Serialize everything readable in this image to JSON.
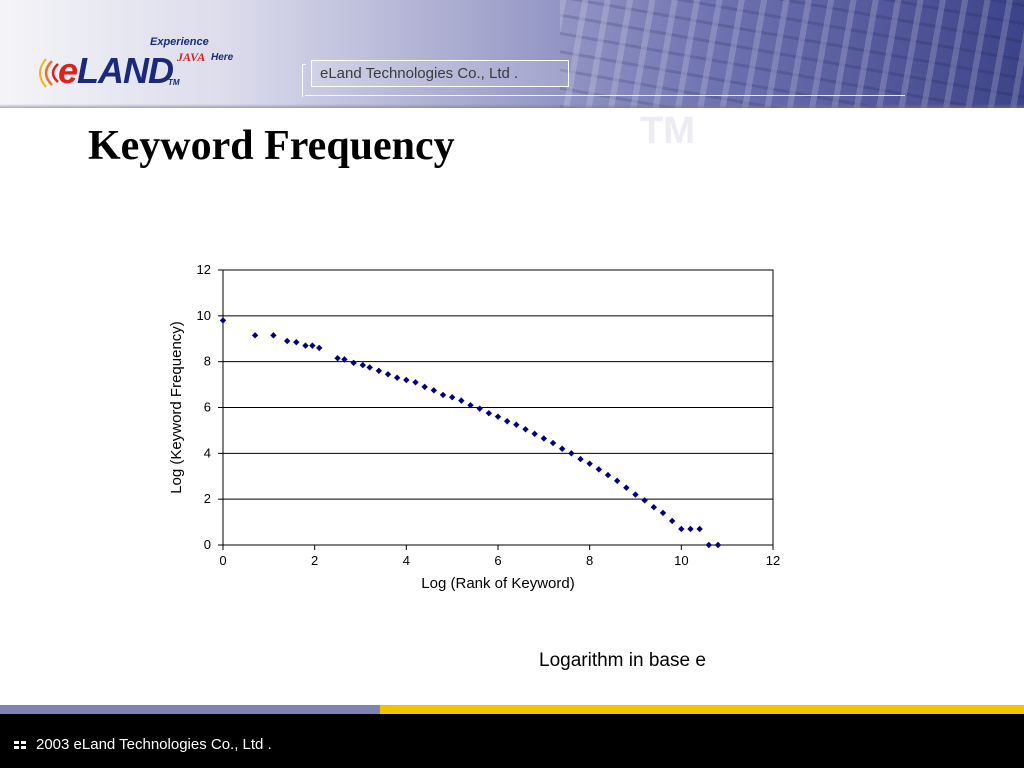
{
  "header": {
    "logo": {
      "word_e": "e",
      "word_rest": "LAND",
      "tm": "TM",
      "tagline_experience": "Experience",
      "tagline_java": "JAVA",
      "tagline_here": "Here"
    },
    "company_box": "eLand Technologies Co., Ltd .",
    "watermark": "TM"
  },
  "slide": {
    "title": "Keyword Frequency",
    "note": "Logarithm in base e"
  },
  "footer": {
    "text": "2003 eLand Technologies Co., Ltd ."
  },
  "colors": {
    "marker": "#00007f",
    "grid": "#000000",
    "footer_bg": "#000000",
    "footer_strip_blue": "#7f82b4",
    "footer_strip_yellow": "#f2c400"
  },
  "chart_data": {
    "type": "scatter",
    "title": "",
    "xlabel": "Log (Rank of Keyword)",
    "ylabel": "Log (Keyword Frequency)",
    "xlim": [
      0,
      12
    ],
    "ylim": [
      0,
      12
    ],
    "xticks": [
      0,
      2,
      4,
      6,
      8,
      10,
      12
    ],
    "yticks": [
      0,
      2,
      4,
      6,
      8,
      10,
      12
    ],
    "grid": "horizontal",
    "legend": "none",
    "points": [
      [
        0,
        9.8
      ],
      [
        0.7,
        9.15
      ],
      [
        1.1,
        9.15
      ],
      [
        1.4,
        8.9
      ],
      [
        1.6,
        8.85
      ],
      [
        1.8,
        8.7
      ],
      [
        1.95,
        8.7
      ],
      [
        2.1,
        8.6
      ],
      [
        2.5,
        8.15
      ],
      [
        2.65,
        8.1
      ],
      [
        2.85,
        7.95
      ],
      [
        3.05,
        7.85
      ],
      [
        3.2,
        7.75
      ],
      [
        3.4,
        7.6
      ],
      [
        3.6,
        7.45
      ],
      [
        3.8,
        7.3
      ],
      [
        4.0,
        7.2
      ],
      [
        4.2,
        7.1
      ],
      [
        4.4,
        6.9
      ],
      [
        4.6,
        6.75
      ],
      [
        4.8,
        6.55
      ],
      [
        5.0,
        6.45
      ],
      [
        5.2,
        6.3
      ],
      [
        5.4,
        6.1
      ],
      [
        5.6,
        5.95
      ],
      [
        5.8,
        5.75
      ],
      [
        6.0,
        5.6
      ],
      [
        6.2,
        5.4
      ],
      [
        6.4,
        5.25
      ],
      [
        6.6,
        5.05
      ],
      [
        6.8,
        4.85
      ],
      [
        7.0,
        4.65
      ],
      [
        7.2,
        4.45
      ],
      [
        7.4,
        4.2
      ],
      [
        7.6,
        4.0
      ],
      [
        7.8,
        3.75
      ],
      [
        8.0,
        3.55
      ],
      [
        8.2,
        3.3
      ],
      [
        8.4,
        3.05
      ],
      [
        8.6,
        2.8
      ],
      [
        8.8,
        2.5
      ],
      [
        9.0,
        2.2
      ],
      [
        9.2,
        1.95
      ],
      [
        9.4,
        1.65
      ],
      [
        9.6,
        1.4
      ],
      [
        9.8,
        1.05
      ],
      [
        10.0,
        0.7
      ],
      [
        10.2,
        0.7
      ],
      [
        10.4,
        0.7
      ],
      [
        10.6,
        0.0
      ],
      [
        10.8,
        0.0
      ]
    ]
  }
}
